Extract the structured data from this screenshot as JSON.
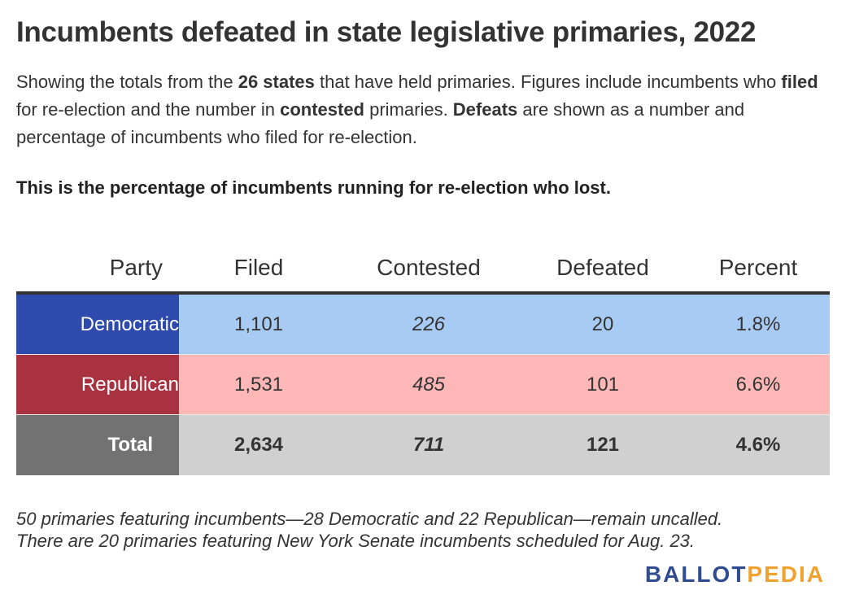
{
  "title": "Incumbents defeated in state legislative primaries, 2022",
  "description": {
    "p1": "Showing the totals from the ",
    "b1": "26 states",
    "p2": " that have held primaries. Figures include incumbents who ",
    "b2": "filed",
    "p3": " for re-election and the number in ",
    "b3": "contested",
    "p4": " primaries. ",
    "b4": "Defeats",
    "p5": " are shown as a number and percentage of incumbents who filed for re-election."
  },
  "subheading": "This is the percentage of incumbents running for re-election who lost.",
  "chart_data": {
    "type": "table",
    "title": "Incumbents defeated in state legislative primaries, 2022",
    "columns": [
      "Party",
      "Filed",
      "Contested",
      "Defeated",
      "Percent"
    ],
    "rows": [
      {
        "party": "Democratic",
        "filed": "1,101",
        "contested": "226",
        "defeated": "20",
        "percent": "1.8%",
        "color": "#2f4aad",
        "row_color": "#a8cbf3"
      },
      {
        "party": "Republican",
        "filed": "1,531",
        "contested": "485",
        "defeated": "101",
        "percent": "6.6%",
        "color": "#a93240",
        "row_color": "#fdb7b7"
      },
      {
        "party": "Total",
        "filed": "2,634",
        "contested": "711",
        "defeated": "121",
        "percent": "4.6%",
        "color": "#727272",
        "row_color": "#d0d0d0"
      }
    ]
  },
  "notes": [
    "50 primaries featuring incumbents—28 Democratic and 22 Republican—remain uncalled.",
    "There are 20 primaries featuring New York Senate incumbents scheduled for Aug. 23."
  ],
  "logo": {
    "part1": "BALLOT",
    "part2": "PEDIA"
  }
}
